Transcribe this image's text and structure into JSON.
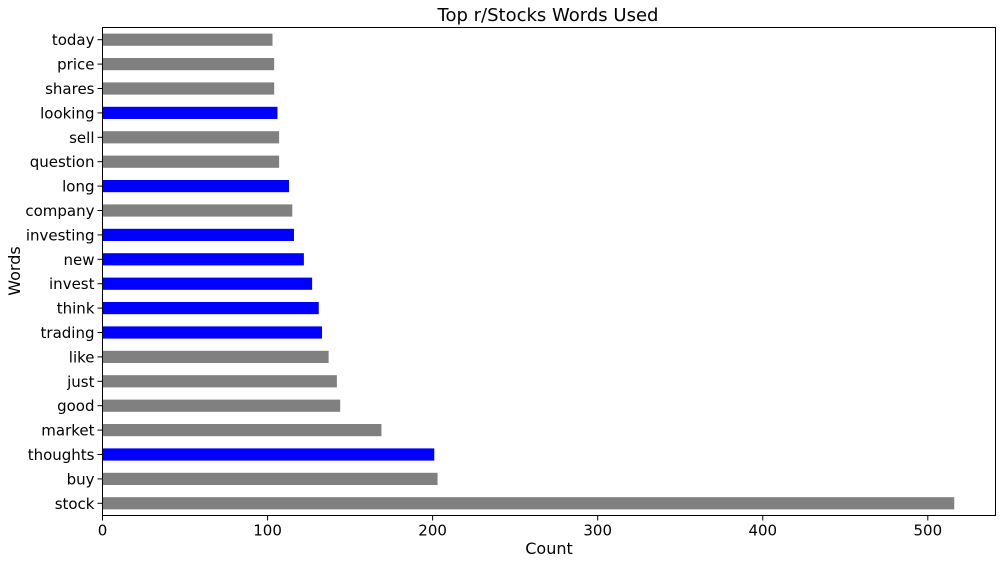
{
  "chart_data": {
    "type": "bar",
    "orientation": "horizontal",
    "title": "Top r/Stocks Words Used",
    "xlabel": "Count",
    "ylabel": "Words",
    "xlim": [
      0,
      541
    ],
    "x_ticks": [
      0,
      100,
      200,
      300,
      400,
      500
    ],
    "grid": false,
    "categories": [
      "stock",
      "buy",
      "thoughts",
      "market",
      "good",
      "just",
      "like",
      "trading",
      "think",
      "invest",
      "new",
      "investing",
      "company",
      "long",
      "question",
      "sell",
      "looking",
      "shares",
      "price",
      "today"
    ],
    "values": [
      516,
      203,
      201,
      169,
      144,
      142,
      137,
      133,
      131,
      127,
      122,
      116,
      115,
      113,
      107,
      107,
      106,
      104,
      104,
      103
    ],
    "colors": [
      "#808080",
      "#808080",
      "#0000ff",
      "#808080",
      "#808080",
      "#808080",
      "#808080",
      "#0000ff",
      "#0000ff",
      "#0000ff",
      "#0000ff",
      "#0000ff",
      "#808080",
      "#0000ff",
      "#808080",
      "#808080",
      "#0000ff",
      "#808080",
      "#808080",
      "#808080"
    ]
  }
}
